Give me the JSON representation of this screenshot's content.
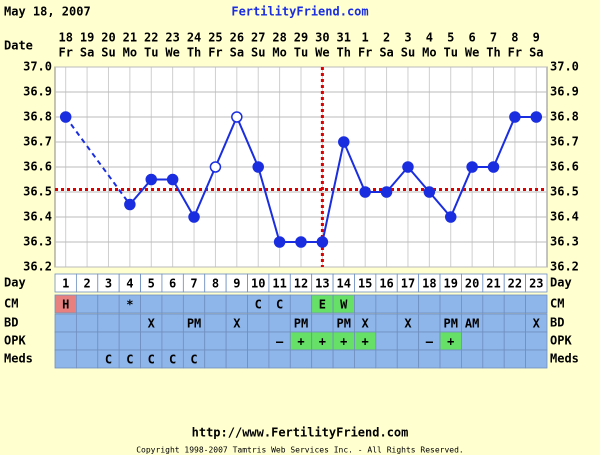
{
  "header": {
    "date": "May 18, 2007",
    "site": "FertilityFriend.com"
  },
  "chart_data": {
    "type": "line",
    "x_label": "Date",
    "dates": [
      "18",
      "19",
      "20",
      "21",
      "22",
      "23",
      "24",
      "25",
      "26",
      "27",
      "28",
      "29",
      "30",
      "31",
      "1",
      "2",
      "3",
      "4",
      "5",
      "6",
      "7",
      "8",
      "9"
    ],
    "weekdays": [
      "Fr",
      "Sa",
      "Su",
      "Mo",
      "Tu",
      "We",
      "Th",
      "Fr",
      "Sa",
      "Su",
      "Mo",
      "Tu",
      "We",
      "Th",
      "Fr",
      "Sa",
      "Su",
      "Mo",
      "Tu",
      "We",
      "Th",
      "Fr",
      "Sa"
    ],
    "series": [
      {
        "name": "Temperature",
        "color": "#1a2ee0",
        "values": [
          36.8,
          null,
          null,
          36.45,
          36.55,
          36.55,
          36.4,
          36.6,
          36.8,
          36.6,
          36.3,
          36.3,
          36.3,
          36.7,
          36.5,
          36.5,
          36.6,
          36.5,
          36.4,
          36.6,
          36.6,
          36.8,
          36.8
        ],
        "hollow": [
          false,
          false,
          false,
          false,
          false,
          false,
          false,
          true,
          true,
          false,
          false,
          false,
          false,
          false,
          false,
          false,
          false,
          false,
          false,
          false,
          false,
          false,
          false
        ]
      }
    ],
    "coverline": 36.51,
    "ovulation_day": 13,
    "marker_color": "#dd0000",
    "ylim": [
      36.2,
      37.0
    ],
    "yticks": [
      {
        "value": 36.2,
        "label": "36.2"
      },
      36.3,
      36.4,
      36.5,
      36.6,
      36.7,
      36.8,
      36.9,
      {
        "value": 37.0,
        "label": "37.0"
      }
    ],
    "grid": true
  },
  "table": {
    "rows": [
      {
        "label": "Day",
        "bg": "#ffffff",
        "cells": [
          1,
          2,
          3,
          4,
          5,
          6,
          7,
          8,
          9,
          10,
          11,
          12,
          13,
          14,
          15,
          16,
          17,
          18,
          19,
          20,
          21,
          22,
          23
        ]
      },
      {
        "label": "CM",
        "bg": "#8fb6ea",
        "cells": [
          {
            "text": "H",
            "bg": "#e88080"
          },
          null,
          null,
          {
            "text": "*"
          },
          null,
          null,
          null,
          null,
          null,
          {
            "text": "C"
          },
          {
            "text": "C"
          },
          null,
          {
            "text": "E",
            "bg": "#66e066"
          },
          {
            "text": "W",
            "bg": "#66e066"
          },
          null,
          null,
          null,
          null,
          null,
          null,
          null,
          null,
          null
        ]
      },
      {
        "label": "BD",
        "bg": "#8fb6ea",
        "cells": [
          null,
          null,
          null,
          null,
          {
            "text": "X"
          },
          null,
          {
            "text": "PM"
          },
          null,
          {
            "text": "X"
          },
          null,
          null,
          {
            "text": "PM"
          },
          null,
          {
            "text": "PM"
          },
          {
            "text": "X"
          },
          null,
          {
            "text": "X"
          },
          null,
          {
            "text": "PM"
          },
          {
            "text": "AM"
          },
          null,
          null,
          {
            "text": "X"
          }
        ]
      },
      {
        "label": "OPK",
        "bg": "#8fb6ea",
        "cells": [
          null,
          null,
          null,
          null,
          null,
          null,
          null,
          null,
          null,
          null,
          {
            "text": "–"
          },
          {
            "text": "+",
            "bg": "#66e066"
          },
          {
            "text": "+",
            "bg": "#66e066"
          },
          {
            "text": "+",
            "bg": "#66e066"
          },
          {
            "text": "+",
            "bg": "#66e066"
          },
          null,
          null,
          {
            "text": "–"
          },
          {
            "text": "+",
            "bg": "#66e066"
          },
          null,
          null,
          null,
          null
        ]
      },
      {
        "label": "Meds",
        "bg": "#8fb6ea",
        "cells": [
          null,
          null,
          {
            "text": "C"
          },
          {
            "text": "C"
          },
          {
            "text": "C"
          },
          {
            "text": "C"
          },
          {
            "text": "C"
          },
          null,
          null,
          null,
          null,
          null,
          null,
          null,
          null,
          null,
          null,
          null,
          null,
          null,
          null,
          null,
          null
        ]
      }
    ]
  },
  "footer": {
    "url": "http://www.FertilityFriend.com",
    "copyright": "Copyright 1998-2007 Tamtris Web Services Inc. - All Rights Reserved."
  }
}
